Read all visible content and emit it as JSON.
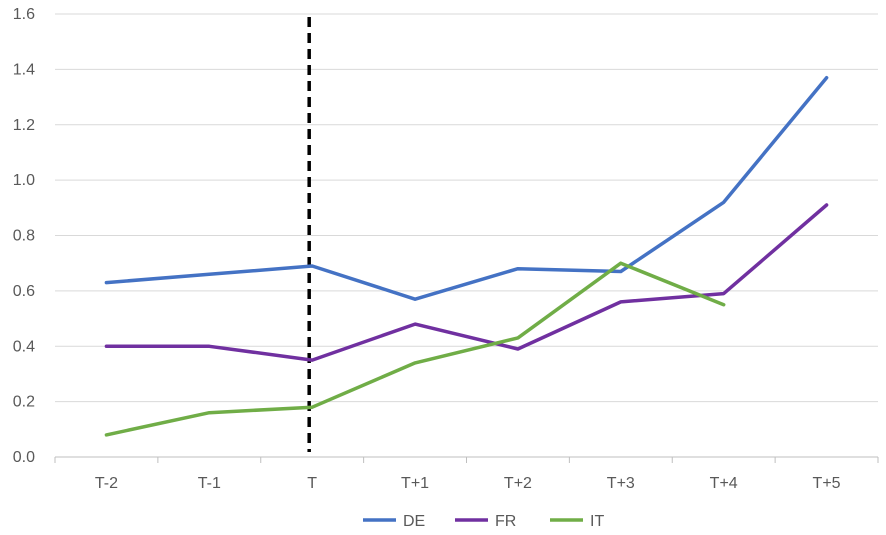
{
  "chart_data": {
    "type": "line",
    "categories": [
      "T-2",
      "T-1",
      "T",
      "T+1",
      "T+2",
      "T+3",
      "T+4",
      "T+5"
    ],
    "series": [
      {
        "name": "DE",
        "color": "#4472C4",
        "values": [
          0.63,
          0.66,
          0.69,
          0.57,
          0.68,
          0.67,
          0.92,
          1.37
        ]
      },
      {
        "name": "FR",
        "color": "#7030A0",
        "values": [
          0.4,
          0.4,
          0.35,
          0.48,
          0.39,
          0.56,
          0.59,
          0.91
        ]
      },
      {
        "name": "IT",
        "color": "#70AD47",
        "values": [
          0.08,
          0.16,
          0.18,
          0.34,
          0.43,
          0.7,
          0.55,
          null
        ]
      }
    ],
    "ylim": [
      0,
      1.6
    ],
    "yticks": [
      "0.0",
      "0.2",
      "0.4",
      "0.6",
      "0.8",
      "1.0",
      "1.2",
      "1.4",
      "1.6"
    ],
    "grid": true,
    "legend": "bottom",
    "marker_line": {
      "category": "T",
      "style": "dashed",
      "color": "#000000"
    }
  }
}
